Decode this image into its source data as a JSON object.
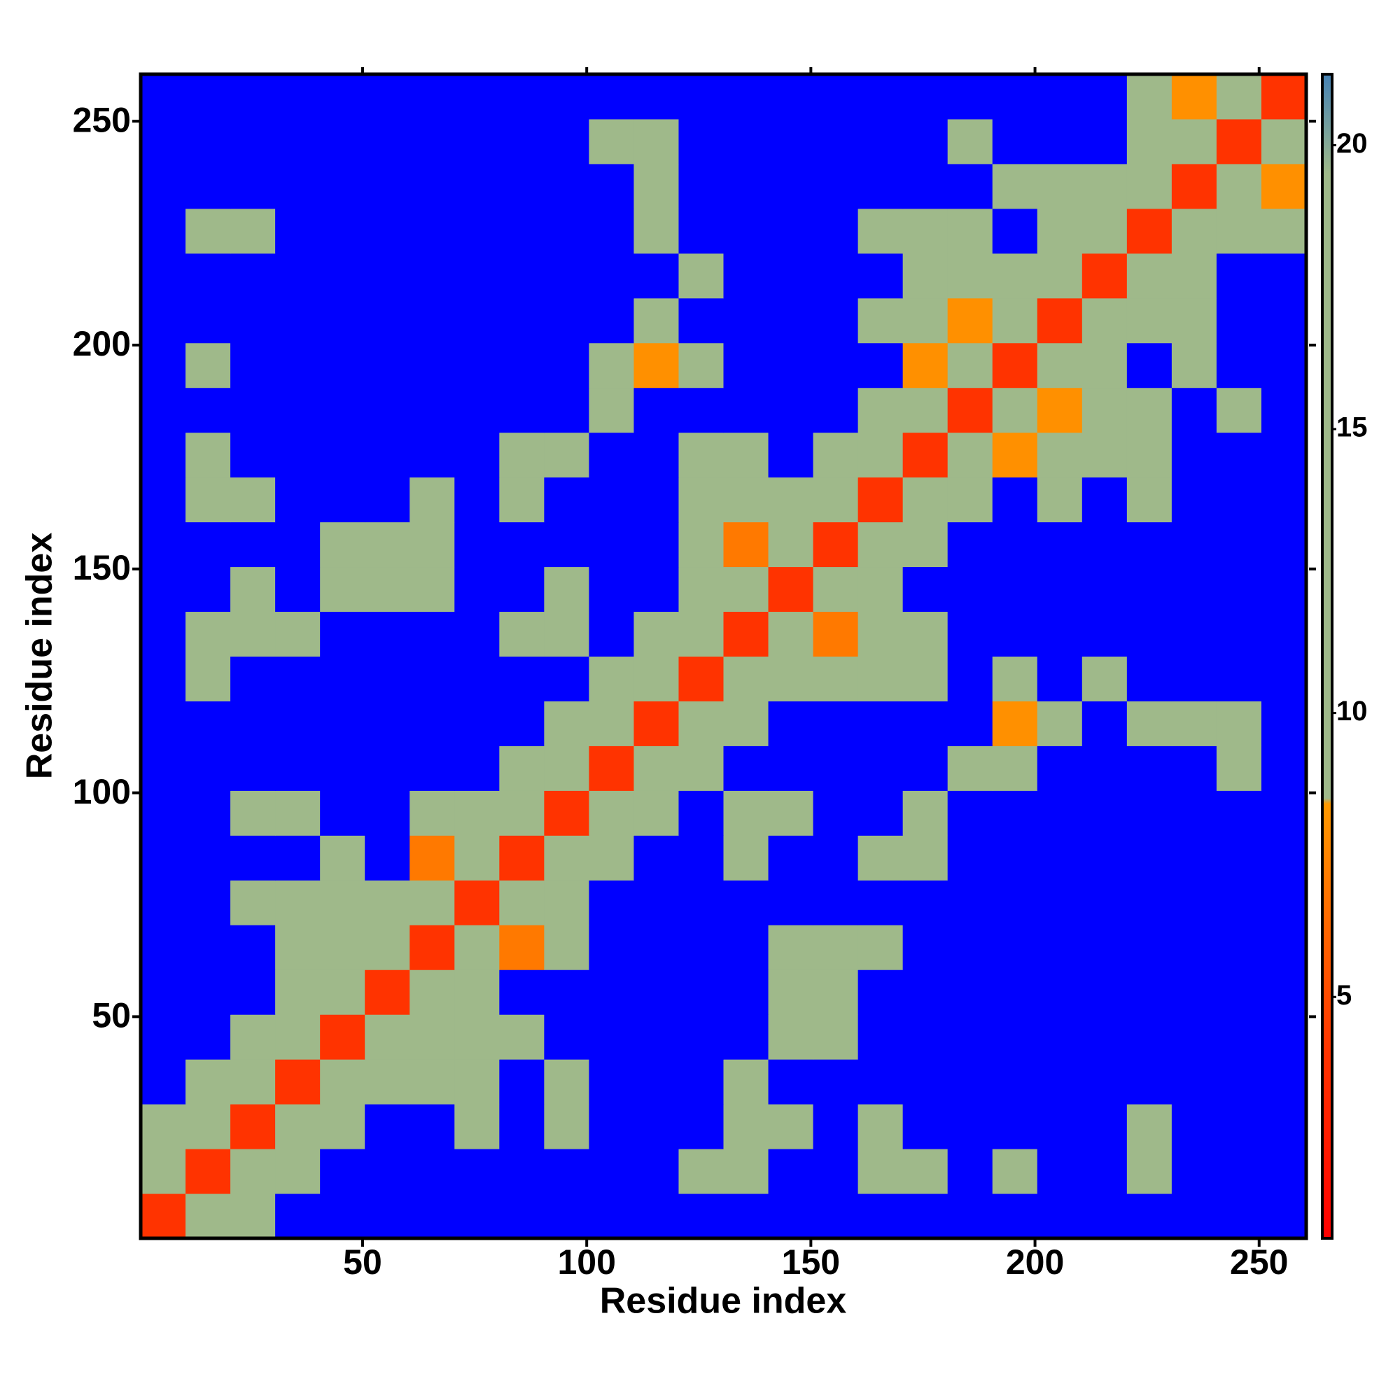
{
  "chart_data": {
    "type": "heatmap",
    "x_label": "Residue index",
    "y_label": "Residue index",
    "xbins": [
      0.5,
      10.5,
      20.5,
      30.5,
      40.5,
      50.5,
      60.5,
      70.5,
      80.5,
      90.5,
      100.5,
      110.5,
      120.5,
      130.5,
      140.5,
      150.5,
      160.5,
      170.5,
      180.5,
      190.5,
      200.5,
      210.5,
      220.5,
      230.5,
      240.5,
      250.5,
      260.5
    ],
    "ybins": [
      0.5,
      10.5,
      20.5,
      30.5,
      40.5,
      50.5,
      60.5,
      70.5,
      80.5,
      90.5,
      100.5,
      110.5,
      120.5,
      130.5,
      140.5,
      150.5,
      160.5,
      170.5,
      180.5,
      190.5,
      200.5,
      210.5,
      220.5,
      230.5,
      240.5,
      250.5,
      260.5
    ],
    "xlim": [
      0.5,
      260.5
    ],
    "ylim": [
      0.5,
      260.5
    ],
    "xticks": [
      50,
      100,
      150,
      200,
      250
    ],
    "yticks": [
      50,
      100,
      150,
      200,
      250
    ],
    "z": [
      [
        4,
        9,
        16,
        25,
        25,
        25,
        25,
        25,
        25,
        25,
        25,
        25,
        25,
        25,
        25,
        25,
        25,
        25,
        25,
        25,
        25,
        25,
        25,
        25,
        25,
        25
      ],
      [
        9,
        4,
        9,
        16,
        25,
        25,
        25,
        25,
        25,
        25,
        25,
        25,
        12,
        12,
        25,
        25,
        12,
        12,
        25,
        14,
        25,
        25,
        10,
        25,
        25,
        25
      ],
      [
        16,
        9,
        4,
        9,
        16,
        25,
        25,
        10,
        25,
        10,
        25,
        25,
        25,
        10,
        12,
        25,
        12,
        25,
        25,
        25,
        25,
        25,
        12,
        25,
        25,
        25
      ],
      [
        25,
        16,
        9,
        4,
        9,
        16,
        10,
        12,
        25,
        12,
        25,
        25,
        25,
        12,
        25,
        25,
        25,
        25,
        25,
        25,
        25,
        25,
        25,
        25,
        25,
        25
      ],
      [
        25,
        25,
        16,
        9,
        4,
        9,
        16,
        12,
        12,
        25,
        25,
        25,
        25,
        25,
        12,
        12,
        25,
        25,
        25,
        25,
        25,
        25,
        25,
        25,
        25,
        25
      ],
      [
        25,
        25,
        25,
        16,
        9,
        4,
        9,
        12,
        25,
        25,
        25,
        25,
        25,
        25,
        12,
        10,
        25,
        25,
        25,
        25,
        25,
        25,
        25,
        25,
        25,
        25
      ],
      [
        25,
        25,
        25,
        10,
        16,
        9,
        4,
        9,
        7,
        12,
        25,
        25,
        25,
        25,
        12,
        12,
        12,
        25,
        25,
        25,
        25,
        25,
        25,
        25,
        25,
        25
      ],
      [
        25,
        25,
        10,
        12,
        12,
        12,
        9,
        4,
        9,
        16,
        25,
        25,
        25,
        25,
        25,
        25,
        25,
        25,
        25,
        25,
        25,
        25,
        25,
        25,
        25,
        25
      ],
      [
        25,
        25,
        25,
        25,
        12,
        25,
        7,
        9,
        4,
        9,
        16,
        25,
        25,
        12,
        25,
        25,
        12,
        12,
        25,
        25,
        25,
        25,
        25,
        25,
        25,
        25
      ],
      [
        25,
        25,
        10,
        12,
        25,
        25,
        12,
        16,
        9,
        4,
        9,
        16,
        25,
        12,
        12,
        25,
        25,
        10,
        25,
        25,
        25,
        25,
        25,
        25,
        25,
        25
      ],
      [
        25,
        25,
        25,
        25,
        25,
        25,
        25,
        25,
        16,
        9,
        4,
        9,
        16,
        25,
        25,
        25,
        25,
        25,
        12,
        12,
        25,
        25,
        25,
        25,
        12,
        25
      ],
      [
        25,
        25,
        25,
        25,
        25,
        25,
        25,
        25,
        25,
        16,
        9,
        4,
        9,
        16,
        25,
        25,
        25,
        25,
        25,
        8,
        12,
        25,
        10,
        12,
        12,
        25
      ],
      [
        25,
        12,
        25,
        25,
        25,
        25,
        25,
        25,
        25,
        25,
        16,
        9,
        4,
        9,
        16,
        12,
        12,
        12,
        25,
        12,
        25,
        12,
        25,
        25,
        25,
        25
      ],
      [
        25,
        12,
        10,
        12,
        25,
        25,
        25,
        25,
        12,
        12,
        25,
        16,
        9,
        4,
        9,
        7,
        12,
        12,
        25,
        25,
        25,
        25,
        25,
        25,
        25,
        25
      ],
      [
        25,
        25,
        12,
        25,
        12,
        12,
        12,
        25,
        25,
        12,
        25,
        25,
        16,
        9,
        4,
        9,
        16,
        25,
        25,
        25,
        25,
        25,
        25,
        25,
        25,
        25
      ],
      [
        25,
        25,
        25,
        25,
        12,
        10,
        12,
        25,
        25,
        25,
        25,
        25,
        12,
        7,
        9,
        4,
        9,
        16,
        25,
        25,
        25,
        25,
        25,
        25,
        25,
        25
      ],
      [
        25,
        12,
        12,
        25,
        25,
        25,
        12,
        25,
        12,
        25,
        25,
        25,
        12,
        12,
        16,
        9,
        4,
        9,
        16,
        25,
        12,
        25,
        12,
        25,
        25,
        25
      ],
      [
        25,
        12,
        25,
        25,
        25,
        25,
        25,
        25,
        12,
        10,
        25,
        25,
        12,
        12,
        25,
        16,
        9,
        4,
        9,
        8,
        12,
        10,
        12,
        25,
        25,
        25
      ],
      [
        25,
        25,
        25,
        25,
        25,
        25,
        25,
        25,
        25,
        25,
        12,
        25,
        25,
        25,
        25,
        25,
        16,
        9,
        4,
        9,
        8,
        12,
        12,
        25,
        12,
        25
      ],
      [
        25,
        14,
        25,
        25,
        25,
        25,
        25,
        25,
        25,
        25,
        12,
        8,
        12,
        25,
        25,
        25,
        25,
        8,
        9,
        4,
        9,
        16,
        25,
        12,
        25,
        25
      ],
      [
        25,
        25,
        25,
        25,
        25,
        25,
        25,
        25,
        25,
        25,
        25,
        12,
        25,
        25,
        25,
        25,
        12,
        12,
        8,
        9,
        4,
        9,
        12,
        13,
        25,
        25
      ],
      [
        25,
        25,
        25,
        25,
        25,
        25,
        25,
        25,
        25,
        25,
        25,
        25,
        12,
        25,
        25,
        25,
        25,
        10,
        12,
        16,
        9,
        4,
        9,
        12,
        25,
        25
      ],
      [
        25,
        10,
        12,
        25,
        25,
        25,
        25,
        25,
        25,
        25,
        25,
        10,
        25,
        25,
        25,
        25,
        12,
        12,
        12,
        25,
        12,
        9,
        4,
        9,
        11,
        12
      ],
      [
        25,
        25,
        25,
        25,
        25,
        25,
        25,
        25,
        25,
        25,
        25,
        12,
        25,
        25,
        25,
        25,
        25,
        25,
        25,
        12,
        13,
        12,
        9,
        4,
        9,
        8
      ],
      [
        25,
        25,
        25,
        25,
        25,
        25,
        25,
        25,
        25,
        25,
        12,
        12,
        25,
        25,
        25,
        25,
        25,
        25,
        12,
        25,
        25,
        25,
        11,
        9,
        4,
        9
      ],
      [
        25,
        25,
        25,
        25,
        25,
        25,
        25,
        25,
        25,
        25,
        25,
        25,
        25,
        25,
        25,
        25,
        25,
        25,
        25,
        25,
        25,
        25,
        12,
        8,
        9,
        4
      ]
    ],
    "colorbar": {
      "lim": [
        0.75,
        21.25
      ],
      "ticks": [
        5,
        10,
        15,
        20
      ],
      "colorscale": [
        [
          0.75,
          "#ff0000"
        ],
        [
          4,
          "#ff3300"
        ],
        [
          8.4,
          "#ff9900"
        ],
        [
          8.5,
          "#9fb98a"
        ],
        [
          19.5,
          "#9fb98a"
        ],
        [
          21.25,
          "#4682b4"
        ]
      ],
      "over_color": "#0000ff"
    }
  }
}
